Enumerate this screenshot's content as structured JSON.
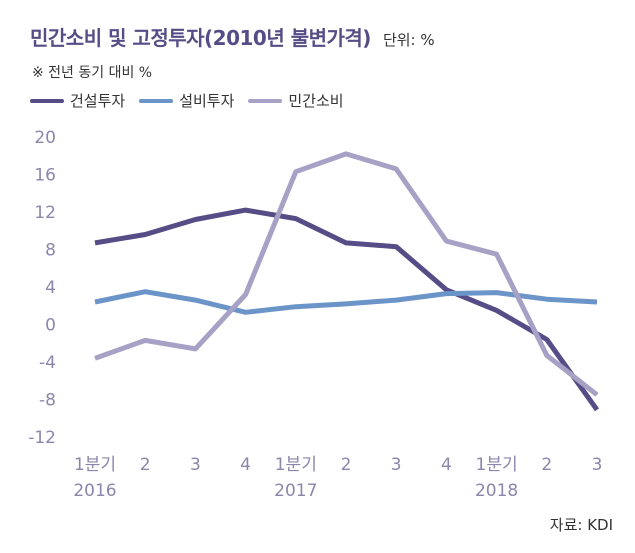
{
  "header": {
    "title": "민간소비 및 고정투자(2010년 불변가격)",
    "unit": "단위: %",
    "subtitle": "※ 전년 동기 대비 %"
  },
  "source": "자료: KDI",
  "chart_data": {
    "type": "line",
    "categories": [
      "1분기",
      "2",
      "3",
      "4",
      "1분기",
      "2",
      "3",
      "4",
      "1분기",
      "2",
      "3"
    ],
    "year_labels": [
      {
        "index": 0,
        "label": "2016"
      },
      {
        "index": 4,
        "label": "2017"
      },
      {
        "index": 8,
        "label": "2018"
      }
    ],
    "ylim": [
      -12,
      20
    ],
    "yticks": [
      20,
      16,
      12,
      8,
      4,
      0,
      -4,
      -8,
      -12
    ],
    "grid": false,
    "legend_position": "top-left",
    "series": [
      {
        "name": "건설투자",
        "color": "#574d86",
        "values": [
          8.7,
          9.6,
          11.2,
          12.2,
          11.3,
          8.7,
          8.3,
          3.7,
          1.5,
          -1.6,
          -9.1
        ]
      },
      {
        "name": "설비투자",
        "color": "#6b94c8",
        "values": [
          2.4,
          3.5,
          2.6,
          1.3,
          1.9,
          2.2,
          2.6,
          3.3,
          3.4,
          2.7,
          2.4
        ]
      },
      {
        "name": "민간소비",
        "color": "#a7a2c5",
        "values": [
          -3.6,
          -1.7,
          -2.6,
          3.2,
          16.3,
          18.2,
          16.6,
          8.9,
          7.5,
          -3.3,
          -7.5
        ]
      }
    ]
  }
}
